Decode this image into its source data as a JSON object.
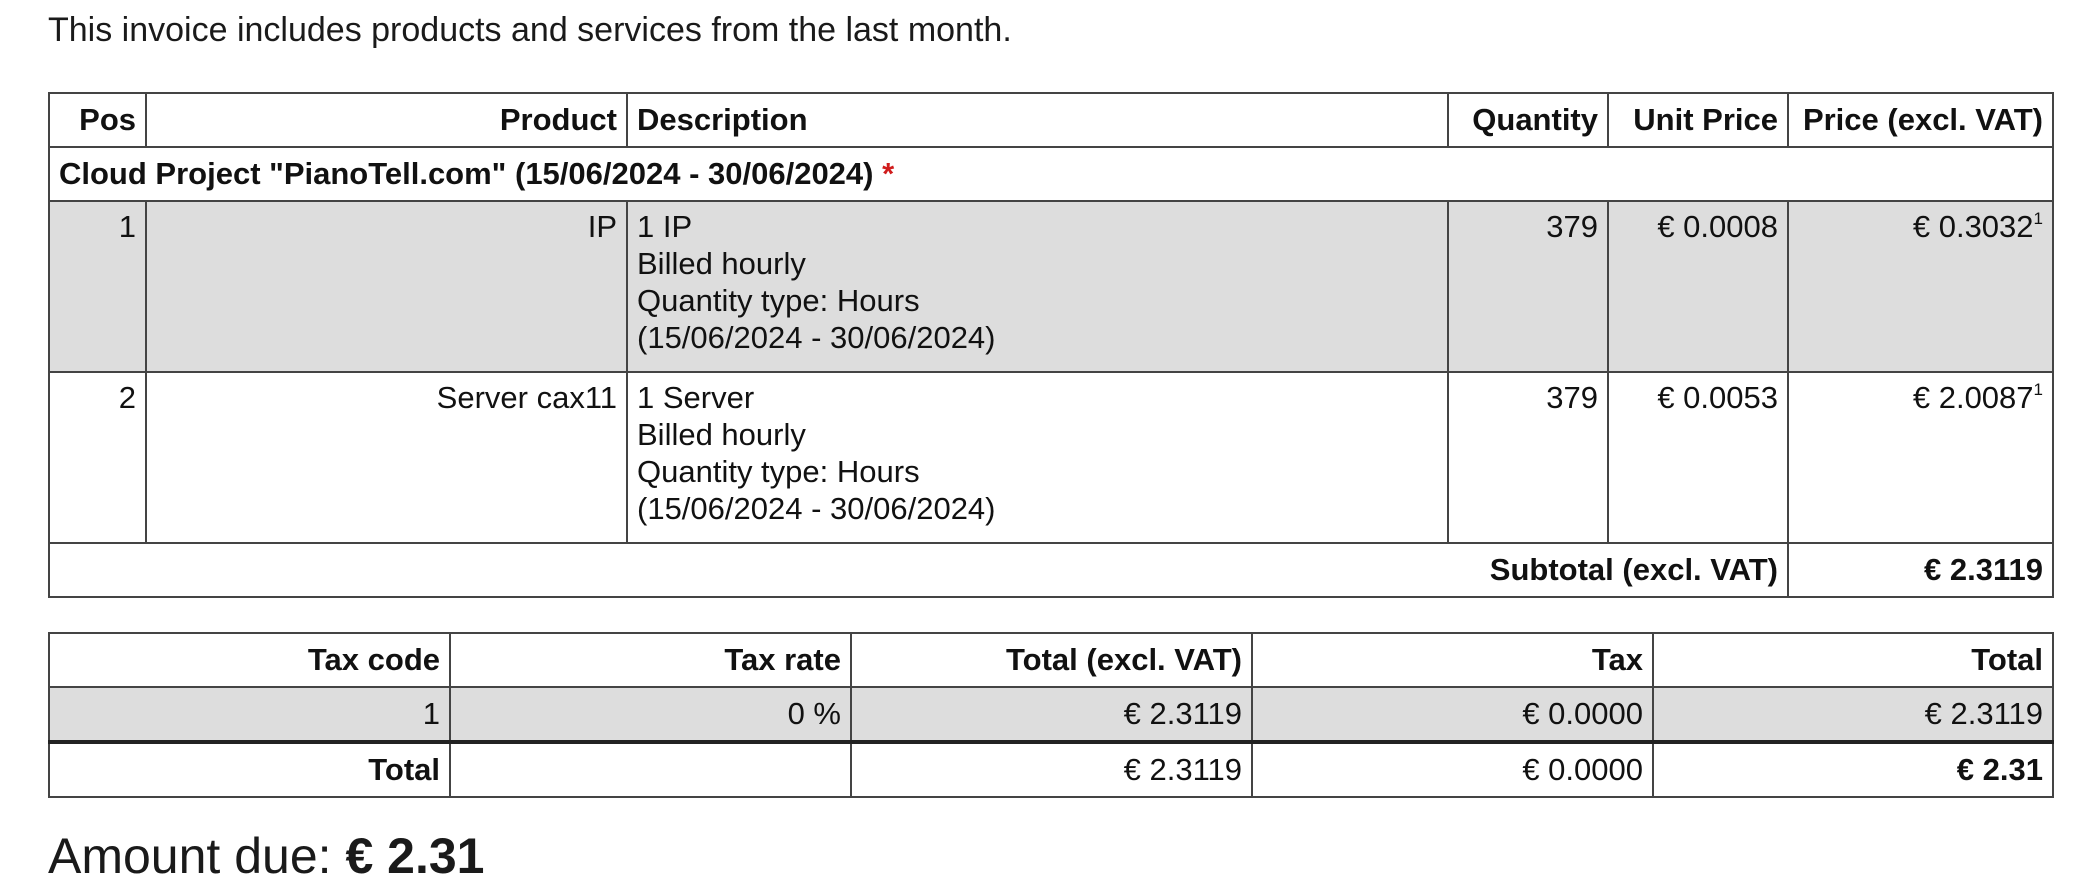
{
  "intro": "This invoice includes products and services from the last month.",
  "items_table": {
    "headers": {
      "pos": "Pos",
      "product": "Product",
      "description": "Description",
      "quantity": "Quantity",
      "unit_price": "Unit Price",
      "price": "Price (excl. VAT)"
    },
    "group": {
      "title": "Cloud Project \"PianoTell.com\" (15/06/2024 - 30/06/2024)",
      "marker": "*"
    },
    "rows": [
      {
        "pos": "1",
        "product": "IP",
        "description": [
          "1 IP",
          "Billed hourly",
          "Quantity type: Hours",
          "(15/06/2024 - 30/06/2024)"
        ],
        "quantity": "379",
        "unit_price": "€ 0.0008",
        "price": "€ 0.3032",
        "footnote": "1"
      },
      {
        "pos": "2",
        "product": "Server cax11",
        "description": [
          "1 Server",
          "Billed hourly",
          "Quantity type: Hours",
          "(15/06/2024 - 30/06/2024)"
        ],
        "quantity": "379",
        "unit_price": "€ 0.0053",
        "price": "€ 2.0087",
        "footnote": "1"
      }
    ],
    "subtotal_label": "Subtotal (excl. VAT)",
    "subtotal_value": "€ 2.3119"
  },
  "tax_table": {
    "headers": {
      "tax_code": "Tax code",
      "tax_rate": "Tax rate",
      "total_excl": "Total (excl. VAT)",
      "tax": "Tax",
      "total": "Total"
    },
    "row": {
      "tax_code": "1",
      "tax_rate": "0 %",
      "total_excl": "€ 2.3119",
      "tax": "€ 0.0000",
      "total": "€ 2.3119"
    },
    "totals": {
      "label": "Total",
      "tax_rate": "",
      "total_excl": "€ 2.3119",
      "tax": "€ 0.0000",
      "total": "€ 2.31"
    }
  },
  "amount_due": {
    "label": "Amount due:",
    "value": "€ 2.31"
  }
}
